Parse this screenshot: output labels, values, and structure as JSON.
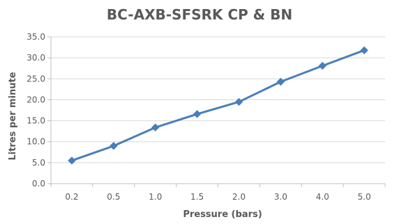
{
  "chart_data": {
    "type": "line",
    "title": "BC-AXB-SFSRK CP & BN",
    "xlabel": "Pressure (bars)",
    "ylabel": "Litres per minute",
    "categories": [
      "0.2",
      "0.5",
      "1.0",
      "1.5",
      "2.0",
      "3.0",
      "4.0",
      "5.0"
    ],
    "series": [
      {
        "values": [
          5.5,
          9.0,
          13.4,
          16.6,
          19.5,
          24.3,
          28.1,
          31.8
        ]
      }
    ],
    "y_ticks": [
      "0.0",
      "5.0",
      "10.0",
      "15.0",
      "20.0",
      "25.0",
      "30.0",
      "35.0"
    ],
    "ylim": [
      0,
      35
    ],
    "grid": "horizontal",
    "legend": "none",
    "marker": "diamond",
    "colors": {
      "series": "#4a7ebb",
      "grid": "#d9d9d9",
      "axis": "#bfbfbf",
      "text": "#595959"
    }
  }
}
